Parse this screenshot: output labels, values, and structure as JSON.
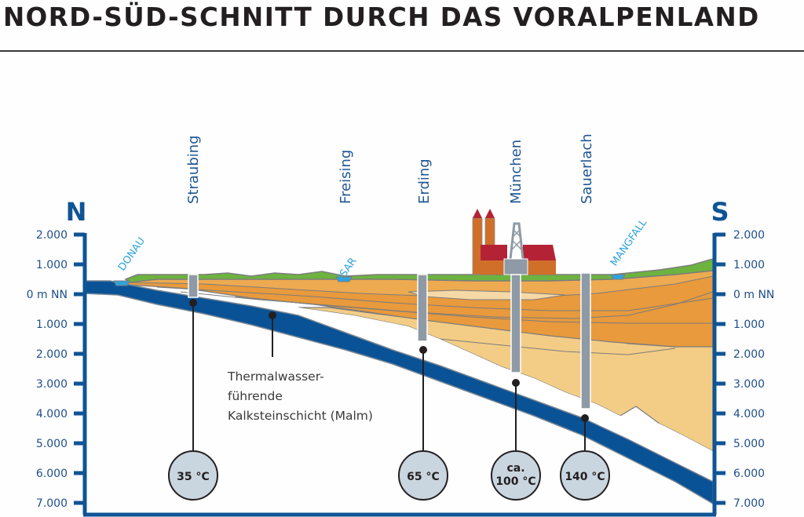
{
  "title": "NORD-SÜD-SCHNITT DURCH DAS VORALPENLAND",
  "direction": {
    "north": "N",
    "south": "S"
  },
  "depth_axis": {
    "labels": [
      "2.000",
      "1.000",
      "0 m NN",
      "1.000",
      "2.000",
      "3.000",
      "4.000",
      "5.000",
      "6.000",
      "7.000"
    ]
  },
  "cities": [
    "Straubing",
    "Freising",
    "Erding",
    "München",
    "Sauerlach"
  ],
  "rivers": [
    "DONAU",
    "ISAR",
    "MANGFALL"
  ],
  "annotation": {
    "line1": "Thermalwasser-",
    "line2": "führende",
    "line3": "Kalksteinschicht (Malm)"
  },
  "temperatures": [
    {
      "line1": "",
      "line2": "35 °C"
    },
    {
      "line1": "",
      "line2": "65 °C"
    },
    {
      "line1": "ca.",
      "line2": "100 °C"
    },
    {
      "line1": "",
      "line2": "140 °C"
    }
  ],
  "colors": {
    "axis_blue": "#0f5495",
    "malm_blue": "#0a5296",
    "green": "#6db33f",
    "orange_dark": "#e89a3c",
    "orange_mid": "#eeaa50",
    "sand": "#f3cd86",
    "light_sand": "#f6d9a6",
    "well_grey": "#8e9aa5",
    "temp_fill": "#c9d5df",
    "church_red": "#b32335",
    "church_orange": "#cf6f2a",
    "river_blue": "#2da3dc"
  }
}
